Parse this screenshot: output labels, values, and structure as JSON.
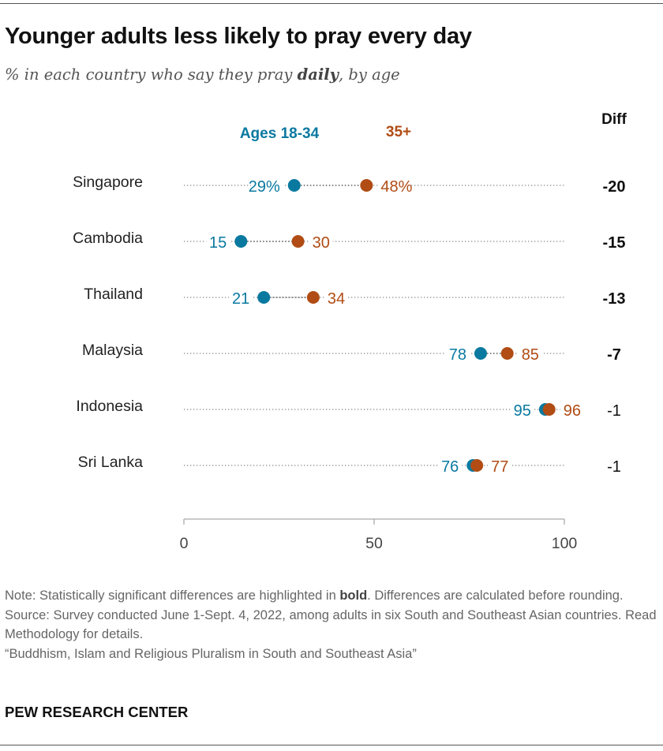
{
  "title": "Younger adults less likely to pray every day",
  "subtitle": {
    "before": "% in each country who say they pray ",
    "emphasis": "daily",
    "after": ", by age"
  },
  "colors": {
    "young": "#0a79a0",
    "old": "#b04c14",
    "dots": "#888888",
    "axis": "#aaaaaa"
  },
  "chart_data": {
    "type": "dot",
    "title": "Younger adults less likely to pray every day",
    "xlim": [
      0,
      100
    ],
    "xticks": [
      "0",
      "50",
      "100"
    ],
    "series": [
      {
        "name": "Ages 18-34",
        "key": "young"
      },
      {
        "name": "35+",
        "key": "old"
      }
    ],
    "diff_header": "Diff",
    "rows": [
      {
        "country": "Singapore",
        "young": 29,
        "old": 48,
        "young_label": "29%",
        "old_label": "48%",
        "diff": "-20",
        "significant": true
      },
      {
        "country": "Cambodia",
        "young": 15,
        "old": 30,
        "young_label": "15",
        "old_label": "30",
        "diff": "-15",
        "significant": true
      },
      {
        "country": "Thailand",
        "young": 21,
        "old": 34,
        "young_label": "21",
        "old_label": "34",
        "diff": "-13",
        "significant": true
      },
      {
        "country": "Malaysia",
        "young": 78,
        "old": 85,
        "young_label": "78",
        "old_label": "85",
        "diff": "-7",
        "significant": true
      },
      {
        "country": "Indonesia",
        "young": 95,
        "old": 96,
        "young_label": "95",
        "old_label": "96",
        "diff": "-1",
        "significant": false
      },
      {
        "country": "Sri Lanka",
        "young": 76,
        "old": 77,
        "young_label": "76",
        "old_label": "77",
        "diff": "-1",
        "significant": false
      }
    ]
  },
  "notes": {
    "note_before": "Note: Statistically significant differences are highlighted in ",
    "note_bold": "bold",
    "note_after": ". Differences are calculated before rounding.",
    "source": "Source: Survey conducted June 1-Sept. 4, 2022, among adults in six South and Southeast Asian countries. Read Methodology for details.",
    "report": "“Buddhism, Islam and Religious Pluralism in South and Southeast Asia”"
  },
  "brand": "PEW RESEARCH CENTER"
}
